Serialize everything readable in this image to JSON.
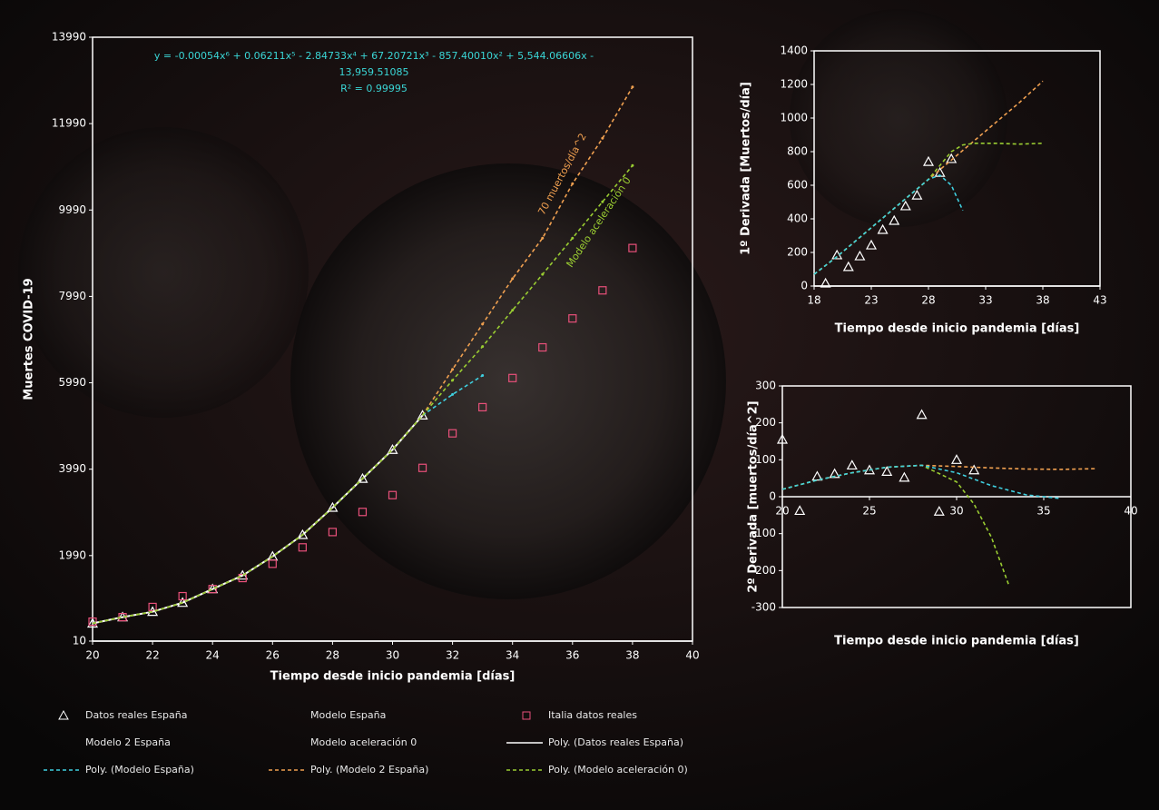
{
  "chart_data": [
    {
      "type": "scatter",
      "xlabel": "Tiempo desde inicio pandemia [días]",
      "ylabel": "Muertes COVID-19",
      "xlim": [
        20,
        40
      ],
      "xticks": [
        20,
        22,
        24,
        26,
        28,
        30,
        32,
        34,
        36,
        38,
        40
      ],
      "ylim": [
        10,
        13990
      ],
      "yticks": [
        10,
        1990,
        3990,
        5990,
        7990,
        9990,
        11990,
        13990
      ],
      "legend": "bottom",
      "annotations": [
        "y = -0.00054x⁶ + 0.06211x⁵ - 2.84733x⁴ + 67.20721x³ - 857.40010x² + 5,544.06606x -",
        "13,959.51085",
        "R² = 0.99995",
        "70 muertos/día^2",
        "Modelo aceleración 0"
      ],
      "series": [
        {
          "name": "Datos reales España",
          "color": "#ffffff",
          "marker": "triangle",
          "line": "none",
          "x": [
            20,
            21,
            22,
            23,
            24,
            25,
            26,
            27,
            28,
            29,
            30,
            31
          ],
          "values": [
            420,
            565,
            690,
            900,
            1215,
            1530,
            1970,
            2470,
            3100,
            3770,
            4441,
            5237
          ]
        },
        {
          "name": "Modelo España",
          "color": "#3fd0e0",
          "marker": "dot",
          "line": "none",
          "x": [
            32,
            33
          ],
          "values": [
            5720,
            6160
          ]
        },
        {
          "name": "Italia datos reales",
          "color": "#e8507a",
          "marker": "square",
          "line": "none",
          "x": [
            20,
            21,
            22,
            23,
            24,
            25,
            26,
            27,
            28,
            29,
            30,
            31,
            32,
            33,
            34,
            35,
            36,
            37,
            38
          ],
          "values": [
            460,
            565,
            800,
            1050,
            1215,
            1470,
            1800,
            2180,
            2535,
            3000,
            3390,
            4020,
            4820,
            5425,
            6100,
            6810,
            7480,
            8130,
            9110
          ]
        },
        {
          "name": "Modelo 2 España",
          "color": "#f0a050",
          "marker": "dot",
          "line": "none",
          "x": [
            32,
            33,
            34,
            35,
            36,
            37,
            38
          ],
          "values": [
            6300,
            7350,
            8400,
            9340,
            10600,
            11650,
            12840
          ]
        },
        {
          "name": "Modelo aceleración 0",
          "color": "#9acd32",
          "marker": "dot",
          "line": "none",
          "x": [
            32,
            33,
            34,
            35,
            36,
            37,
            38
          ],
          "values": [
            6050,
            6830,
            7670,
            8500,
            9340,
            10180,
            11020
          ]
        },
        {
          "name": "Poly. (Datos reales España)",
          "color": "#ffffff",
          "marker": "none",
          "line": "solid",
          "x": [
            20,
            21,
            22,
            23,
            24,
            25,
            26,
            27,
            28,
            29,
            30,
            31
          ],
          "values": [
            420,
            565,
            690,
            900,
            1215,
            1530,
            1970,
            2470,
            3100,
            3770,
            4441,
            5237
          ]
        },
        {
          "name": "Poly. (Modelo España)",
          "color": "#3fd0e0",
          "marker": "none",
          "line": "dashed",
          "x": [
            20,
            21,
            22,
            23,
            24,
            25,
            26,
            27,
            28,
            29,
            30,
            31,
            32,
            33
          ],
          "values": [
            420,
            565,
            690,
            900,
            1215,
            1530,
            1970,
            2470,
            3100,
            3770,
            4441,
            5237,
            5720,
            6160
          ]
        },
        {
          "name": "Poly. (Modelo 2 España)",
          "color": "#f0a050",
          "marker": "none",
          "line": "dashed",
          "x": [
            20,
            21,
            22,
            23,
            24,
            25,
            26,
            27,
            28,
            29,
            30,
            31,
            32,
            33,
            34,
            35,
            36,
            37,
            38
          ],
          "values": [
            420,
            565,
            690,
            900,
            1215,
            1530,
            1970,
            2470,
            3100,
            3770,
            4441,
            5237,
            6300,
            7350,
            8400,
            9340,
            10600,
            11650,
            12840
          ]
        },
        {
          "name": "Poly. (Modelo aceleración 0)",
          "color": "#9acd32",
          "marker": "none",
          "line": "dashed",
          "x": [
            20,
            21,
            22,
            23,
            24,
            25,
            26,
            27,
            28,
            29,
            30,
            31,
            32,
            33,
            34,
            35,
            36,
            37,
            38
          ],
          "values": [
            420,
            565,
            690,
            900,
            1215,
            1530,
            1970,
            2470,
            3100,
            3770,
            4441,
            5237,
            6050,
            6830,
            7670,
            8500,
            9340,
            10180,
            11020
          ]
        }
      ]
    },
    {
      "type": "scatter",
      "xlabel": "Tiempo desde inicio pandemia [días]",
      "ylabel": "1º Derivada [Muertos/día]",
      "xlim": [
        18,
        43
      ],
      "xticks": [
        18,
        23,
        28,
        33,
        38,
        43
      ],
      "ylim": [
        0,
        1400
      ],
      "yticks": [
        0,
        200,
        400,
        600,
        800,
        1000,
        1200,
        1400
      ],
      "series": [
        {
          "color": "#ffffff",
          "marker": "triangle",
          "line": "none",
          "x": [
            19,
            20,
            21,
            22,
            23,
            24,
            25,
            26,
            27,
            28,
            29,
            30
          ],
          "values": [
            16,
            184,
            114,
            178,
            243,
            335,
            389,
            476,
            540,
            740,
            675,
            757
          ]
        },
        {
          "color": "#f0a050",
          "marker": "none",
          "line": "dashed",
          "x": [
            18,
            20,
            22,
            24,
            26,
            28,
            30,
            32,
            34,
            36,
            38
          ],
          "values": [
            70,
            175,
            290,
            405,
            520,
            635,
            750,
            865,
            980,
            1095,
            1220
          ]
        },
        {
          "color": "#9acd32",
          "marker": "none",
          "line": "dashed",
          "x": [
            18,
            20,
            22,
            24,
            26,
            28,
            30,
            31,
            32,
            34,
            36,
            38
          ],
          "values": [
            70,
            175,
            290,
            405,
            520,
            635,
            800,
            840,
            850,
            850,
            845,
            850
          ]
        },
        {
          "color": "#3fd0e0",
          "marker": "none",
          "line": "dashed",
          "x": [
            18,
            20,
            22,
            24,
            26,
            28,
            29,
            30,
            31
          ],
          "values": [
            70,
            175,
            290,
            405,
            520,
            635,
            660,
            600,
            450
          ]
        }
      ]
    },
    {
      "type": "scatter",
      "xlabel": "Tiempo desde inicio pandemia [días]",
      "ylabel": "2º Derivada [muertos/día^2]",
      "xlim": [
        20,
        40
      ],
      "xticks": [
        20,
        25,
        30,
        35,
        40
      ],
      "ylim": [
        -300,
        300
      ],
      "yticks": [
        -300,
        -200,
        -100,
        0,
        100,
        200,
        300
      ],
      "series": [
        {
          "color": "#ffffff",
          "marker": "triangle",
          "line": "none",
          "x": [
            20,
            21,
            22,
            23,
            24,
            25,
            26,
            27,
            28,
            29,
            30,
            31
          ],
          "values": [
            155,
            -38,
            55,
            62,
            85,
            72,
            68,
            52,
            222,
            -40,
            100,
            72
          ]
        },
        {
          "color": "#f0a050",
          "marker": "none",
          "line": "dashed",
          "x": [
            20,
            22,
            24,
            26,
            28,
            30,
            32,
            34,
            36,
            38
          ],
          "values": [
            20,
            45,
            65,
            80,
            85,
            82,
            78,
            75,
            74,
            76
          ]
        },
        {
          "color": "#9acd32",
          "marker": "none",
          "line": "dashed",
          "x": [
            20,
            22,
            24,
            26,
            28,
            30,
            31,
            32,
            33
          ],
          "values": [
            20,
            45,
            65,
            80,
            85,
            40,
            -20,
            -110,
            -240
          ]
        },
        {
          "color": "#3fd0e0",
          "marker": "none",
          "line": "dashed",
          "x": [
            20,
            22,
            24,
            26,
            28,
            30,
            32,
            34,
            35,
            36
          ],
          "values": [
            20,
            45,
            65,
            80,
            85,
            65,
            30,
            5,
            0,
            -5
          ]
        }
      ]
    }
  ]
}
